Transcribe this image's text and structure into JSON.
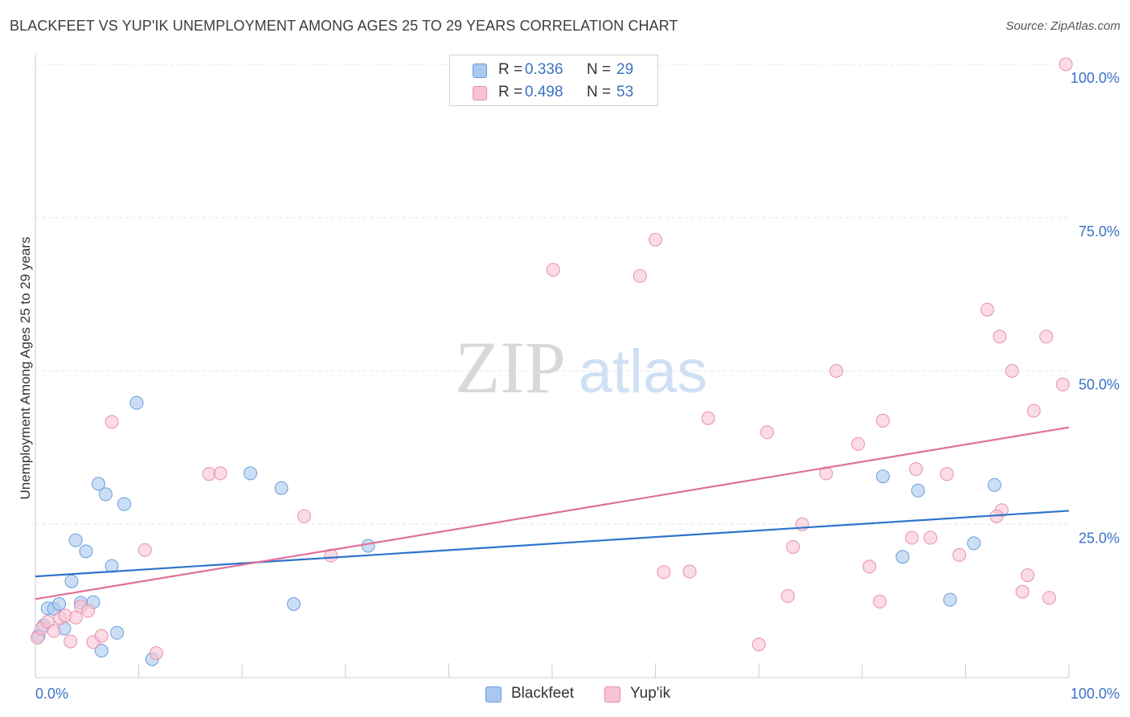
{
  "header": {
    "title": "BLACKFEET VS YUP'IK UNEMPLOYMENT AMONG AGES 25 TO 29 YEARS CORRELATION CHART",
    "source": "Source: ZipAtlas.com"
  },
  "watermark": {
    "zip": "ZIP",
    "atlas": "atlas"
  },
  "legend": {
    "rows": [
      {
        "r_label": "R =",
        "r_value": "0.336",
        "n_label": "N =",
        "n_value": "29",
        "color": "#aac8f0",
        "border": "#6a9ed8"
      },
      {
        "r_label": "R =",
        "r_value": "0.498",
        "n_label": "N =",
        "n_value": "53",
        "color": "#f8c3d4",
        "border": "#e890ab"
      }
    ]
  },
  "bottom_legend": [
    {
      "label": "Blackfeet",
      "color": "#aac8f0",
      "border": "#6a9ed8"
    },
    {
      "label": "Yup'ik",
      "color": "#f8c3d4",
      "border": "#e890ab"
    }
  ],
  "chart_data": {
    "type": "scatter",
    "title": "BLACKFEET VS YUP'IK UNEMPLOYMENT AMONG AGES 25 TO 29 YEARS CORRELATION CHART",
    "xlabel": "",
    "ylabel": "Unemployment Among Ages 25 to 29 years",
    "xlim": [
      0,
      100
    ],
    "ylim": [
      0,
      100
    ],
    "x_tick_labels": [
      "0.0%",
      "100.0%"
    ],
    "y_tick_labels": [
      "25.0%",
      "50.0%",
      "75.0%",
      "100.0%"
    ],
    "y_ticks": [
      25,
      50,
      75,
      100
    ],
    "grid": true,
    "legend_position": "top-center",
    "series": [
      {
        "name": "Blackfeet",
        "color": "#6a9ed8",
        "fill": "#aac8f0",
        "trend_color": "#2f74c9",
        "trend": [
          [
            0,
            16.5
          ],
          [
            100,
            27.2
          ]
        ],
        "points": [
          [
            0.3,
            6.8
          ],
          [
            0.8,
            8.5
          ],
          [
            1.2,
            11.3
          ],
          [
            1.8,
            11.2
          ],
          [
            2.3,
            12.0
          ],
          [
            2.8,
            8.0
          ],
          [
            3.5,
            15.7
          ],
          [
            3.9,
            22.4
          ],
          [
            4.4,
            12.2
          ],
          [
            4.9,
            20.6
          ],
          [
            5.6,
            12.3
          ],
          [
            6.1,
            31.6
          ],
          [
            6.4,
            4.4
          ],
          [
            6.8,
            29.9
          ],
          [
            7.4,
            18.2
          ],
          [
            7.9,
            7.3
          ],
          [
            8.6,
            28.3
          ],
          [
            9.8,
            44.8
          ],
          [
            11.3,
            3.0
          ],
          [
            20.8,
            33.3
          ],
          [
            23.8,
            30.9
          ],
          [
            25.0,
            12.0
          ],
          [
            32.2,
            21.5
          ],
          [
            82.0,
            32.8
          ],
          [
            83.9,
            19.7
          ],
          [
            85.4,
            30.5
          ],
          [
            88.5,
            12.7
          ],
          [
            90.8,
            21.9
          ],
          [
            92.8,
            31.4
          ]
        ]
      },
      {
        "name": "Yup'ik",
        "color": "#e890ab",
        "fill": "#f8c3d4",
        "trend_color": "#e07098",
        "trend": [
          [
            0,
            12.8
          ],
          [
            100,
            40.8
          ]
        ],
        "points": [
          [
            0.2,
            6.5
          ],
          [
            0.6,
            8.0
          ],
          [
            1.2,
            9.1
          ],
          [
            1.8,
            7.6
          ],
          [
            2.4,
            9.7
          ],
          [
            2.9,
            10.1
          ],
          [
            3.4,
            5.9
          ],
          [
            3.9,
            9.8
          ],
          [
            4.4,
            11.6
          ],
          [
            5.1,
            10.9
          ],
          [
            5.6,
            5.8
          ],
          [
            6.4,
            6.8
          ],
          [
            7.4,
            41.7
          ],
          [
            10.6,
            20.8
          ],
          [
            11.7,
            4.0
          ],
          [
            16.8,
            33.2
          ],
          [
            17.9,
            33.3
          ],
          [
            26.0,
            26.3
          ],
          [
            28.6,
            19.9
          ],
          [
            50.1,
            66.5
          ],
          [
            58.5,
            65.5
          ],
          [
            60.0,
            71.4
          ],
          [
            60.8,
            17.2
          ],
          [
            63.3,
            17.3
          ],
          [
            65.1,
            42.3
          ],
          [
            70.0,
            5.4
          ],
          [
            70.8,
            40.0
          ],
          [
            72.8,
            13.3
          ],
          [
            73.3,
            21.3
          ],
          [
            74.2,
            25.0
          ],
          [
            76.5,
            33.3
          ],
          [
            77.5,
            50.0
          ],
          [
            79.6,
            38.1
          ],
          [
            80.7,
            18.1
          ],
          [
            81.7,
            12.4
          ],
          [
            82.0,
            41.9
          ],
          [
            84.8,
            22.8
          ],
          [
            85.2,
            34.0
          ],
          [
            86.6,
            22.8
          ],
          [
            88.2,
            33.2
          ],
          [
            89.4,
            20.0
          ],
          [
            92.1,
            60.0
          ],
          [
            93.3,
            55.6
          ],
          [
            94.5,
            50.0
          ],
          [
            95.5,
            14.0
          ],
          [
            96.0,
            16.7
          ],
          [
            96.6,
            43.5
          ],
          [
            97.8,
            55.6
          ],
          [
            98.1,
            13.0
          ],
          [
            99.4,
            47.8
          ],
          [
            99.7,
            100.0
          ],
          [
            93.5,
            27.3
          ],
          [
            93.0,
            26.3
          ]
        ]
      }
    ]
  }
}
